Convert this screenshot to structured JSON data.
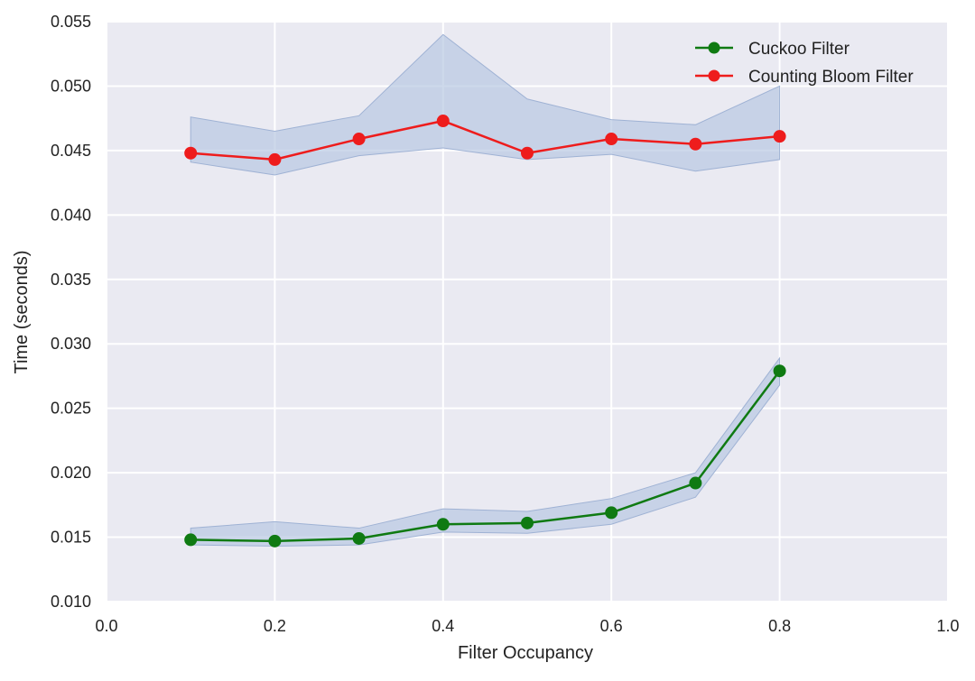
{
  "chart_data": {
    "type": "line",
    "title": "",
    "xlabel": "Filter Occupancy",
    "ylabel": "Time (seconds)",
    "xlim": [
      0.0,
      1.0
    ],
    "ylim": [
      0.01,
      0.055
    ],
    "grid": true,
    "legend_position": "top-right",
    "x_ticks": [
      "0.0",
      "0.2",
      "0.4",
      "0.6",
      "0.8",
      "1.0"
    ],
    "y_ticks": [
      "0.010",
      "0.015",
      "0.020",
      "0.025",
      "0.030",
      "0.035",
      "0.040",
      "0.045",
      "0.050",
      "0.055"
    ],
    "x": [
      0.1,
      0.2,
      0.3,
      0.4,
      0.5,
      0.6,
      0.7,
      0.8
    ],
    "series": [
      {
        "name": "Cuckoo Filter",
        "color": "#0f7a12",
        "values": [
          0.0148,
          0.0147,
          0.0149,
          0.016,
          0.0161,
          0.0169,
          0.0192,
          0.0279
        ],
        "band_lower": [
          0.0144,
          0.0143,
          0.0144,
          0.0154,
          0.0153,
          0.016,
          0.0181,
          0.0268
        ],
        "band_upper": [
          0.0157,
          0.0162,
          0.0157,
          0.0172,
          0.017,
          0.018,
          0.02,
          0.0289
        ]
      },
      {
        "name": "Counting Bloom Filter",
        "color": "#ee1c1c",
        "values": [
          0.0448,
          0.0443,
          0.0459,
          0.0473,
          0.0448,
          0.0459,
          0.0455,
          0.0461
        ],
        "band_lower": [
          0.0441,
          0.0431,
          0.0446,
          0.0452,
          0.0443,
          0.0447,
          0.0434,
          0.0443
        ],
        "band_upper": [
          0.0476,
          0.0465,
          0.0477,
          0.054,
          0.049,
          0.0474,
          0.047,
          0.05
        ]
      }
    ],
    "band_color": "#b3c4e0"
  }
}
